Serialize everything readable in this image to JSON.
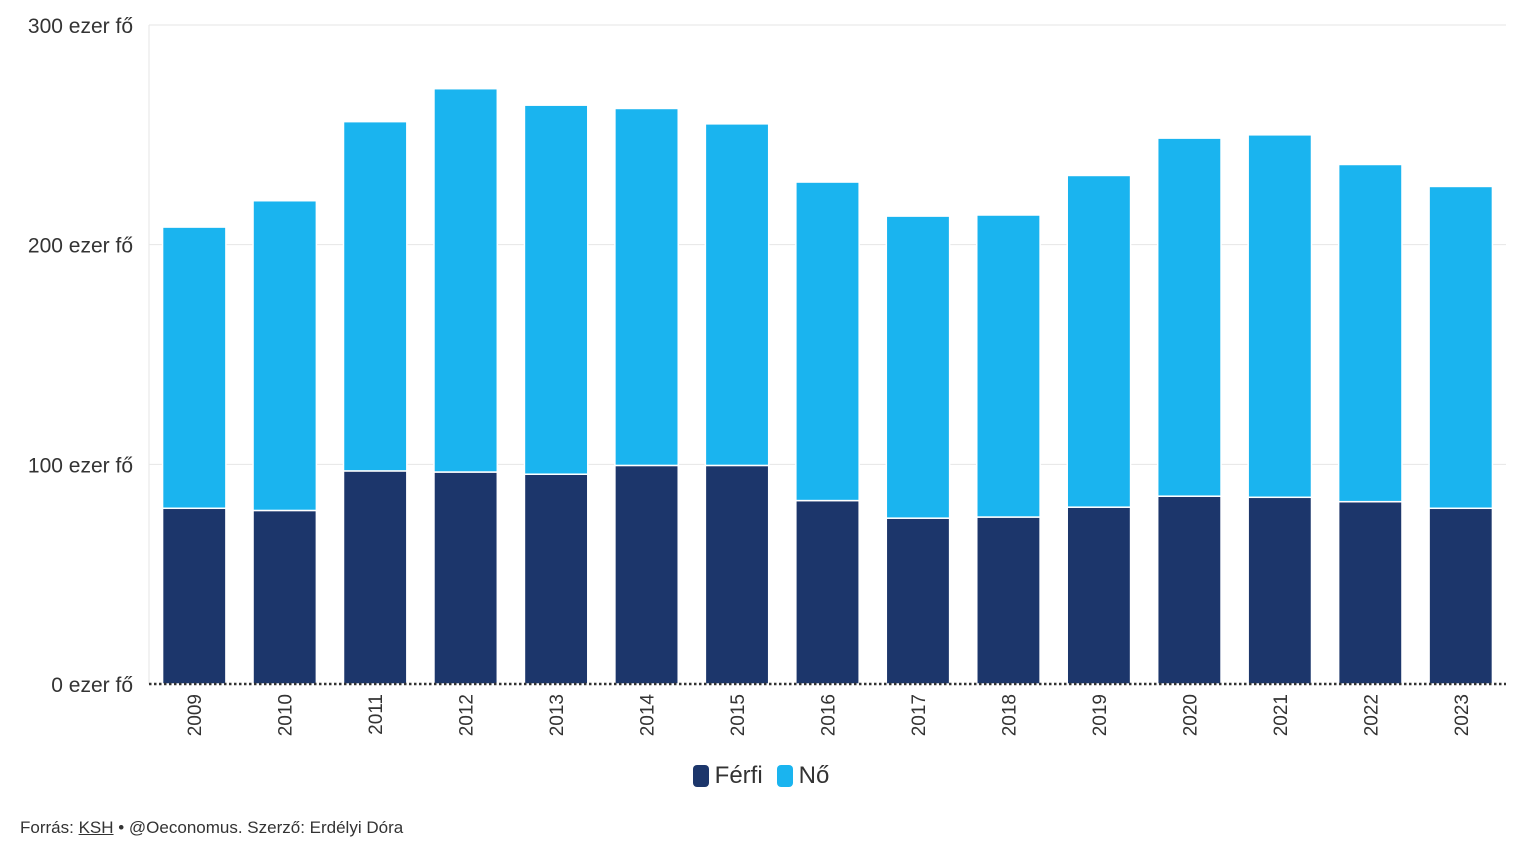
{
  "chart_data": {
    "type": "bar",
    "stacked": true,
    "title": "",
    "xlabel": "",
    "ylabel": "",
    "categories": [
      "2009",
      "2010",
      "2011",
      "2012",
      "2013",
      "2014",
      "2015",
      "2016",
      "2017",
      "2018",
      "2019",
      "2020",
      "2021",
      "2022",
      "2023"
    ],
    "series": [
      {
        "name": "Férfi",
        "color": "#1c366b",
        "values": [
          80,
          79,
          97,
          96.5,
          95.5,
          99.5,
          99.5,
          83.5,
          75.5,
          76,
          80.5,
          85.5,
          85,
          83,
          80
        ]
      },
      {
        "name": "Nő",
        "color": "#1ab4ef",
        "values": [
          128,
          141,
          159,
          174.5,
          168,
          162.5,
          155.5,
          145,
          137.5,
          137.5,
          151,
          163,
          165,
          153.5,
          146.5
        ]
      }
    ],
    "ylim": [
      0,
      300
    ],
    "yticks": [
      0,
      100,
      200,
      300
    ],
    "ytick_labels": [
      "0 ezer fő",
      "100 ezer fő",
      "200 ezer fő",
      "300 ezer fő"
    ],
    "grid": true,
    "legend_position": "bottom-center"
  },
  "legend": {
    "items": [
      {
        "label": "Férfi",
        "color": "#1c366b"
      },
      {
        "label": "Nő",
        "color": "#1ab4ef"
      }
    ]
  },
  "footer": {
    "prefix": "Forrás: ",
    "source_link": "KSH",
    "suffix": " • @Oeconomus. Szerző: Erdélyi Dóra"
  }
}
